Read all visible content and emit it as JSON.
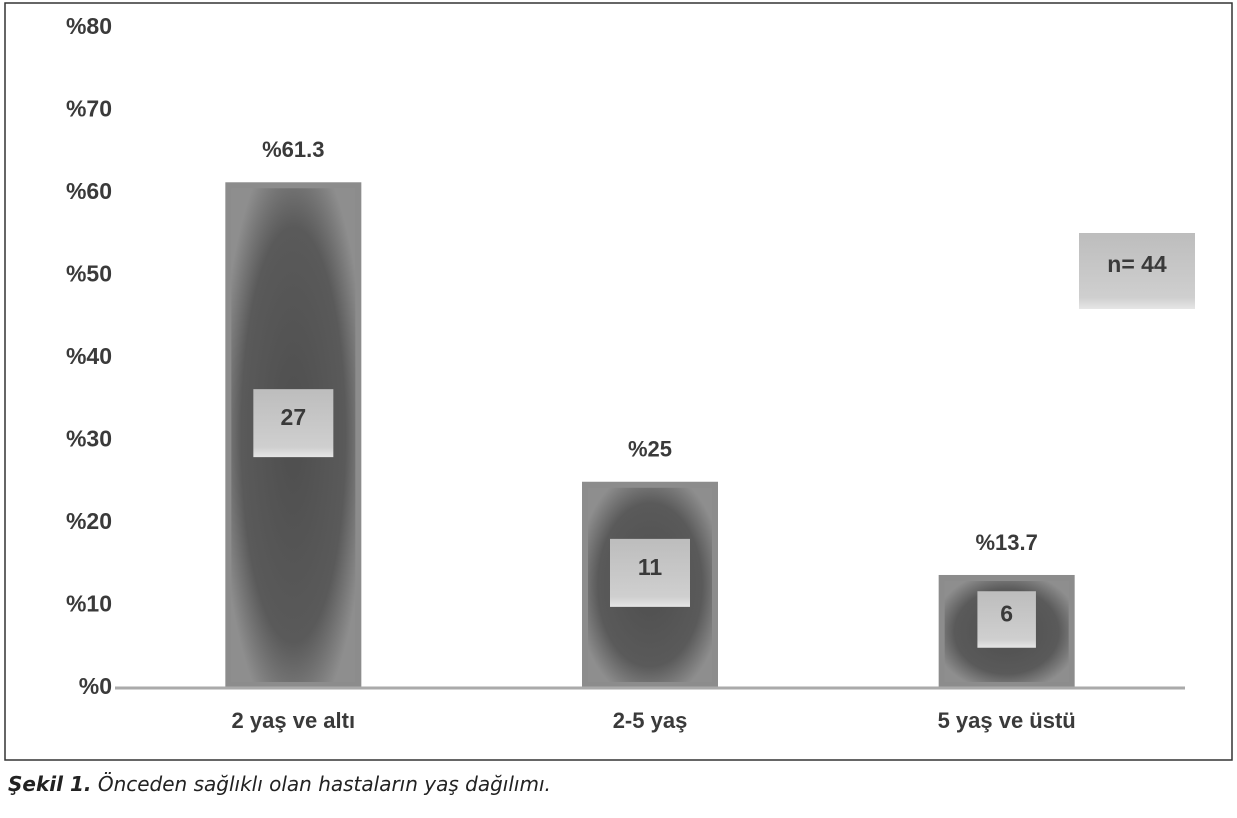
{
  "chart_data": {
    "type": "bar",
    "categories": [
      "2 yaş ve altı",
      "2-5 yaş",
      "5 yaş ve üstü"
    ],
    "values": [
      61.3,
      25,
      13.7
    ],
    "value_labels": [
      "%61.3",
      "%25",
      "%13.7"
    ],
    "counts": [
      27,
      11,
      6
    ],
    "annotation": "n= 44",
    "color": "#8c8c8c",
    "ylim": [
      0,
      80
    ],
    "yticks": [
      {
        "value": 0,
        "label": "%0"
      },
      {
        "value": 10,
        "label": "%10"
      },
      {
        "value": 20,
        "label": "%20"
      },
      {
        "value": 30,
        "label": "%30"
      },
      {
        "value": 40,
        "label": "%40"
      },
      {
        "value": 50,
        "label": "%50"
      },
      {
        "value": 60,
        "label": "%60"
      },
      {
        "value": 70,
        "label": "%70"
      },
      {
        "value": 80,
        "label": "%80"
      }
    ],
    "grid": false
  },
  "caption": {
    "label": "Şekil 1.",
    "text": "Önceden sağlıklı olan hastaların yaş dağılımı."
  }
}
